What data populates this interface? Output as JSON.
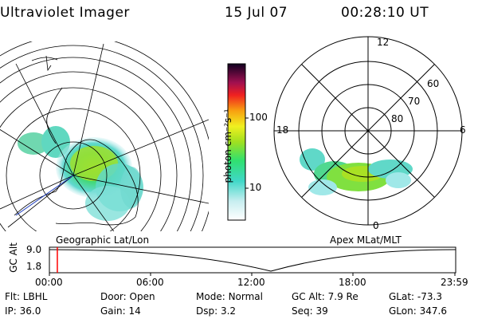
{
  "header": {
    "title": "Ultraviolet Imager",
    "date": "15 Jul 07",
    "time": "00:28:10 UT"
  },
  "colorbar": {
    "unit_label": "photon cm⁻²s⁻¹",
    "ticks": [
      "100",
      "10"
    ]
  },
  "left_panel": {
    "caption": "Geographic Lat/Lon"
  },
  "right_panel": {
    "caption": "Apex MLat/MLT",
    "mlt_labels": {
      "top": "12",
      "left": "18",
      "right": "6",
      "bottom": "0"
    },
    "lat_labels": [
      "60",
      "70",
      "80"
    ]
  },
  "timeline": {
    "axis_label": "GC Alt",
    "y_ticks": [
      "9.0",
      "1.8"
    ],
    "x_ticks": [
      "00:00",
      "06:00",
      "12:00",
      "18:00",
      "23:59"
    ],
    "marker_time_hours": 0.47
  },
  "info": {
    "row1": [
      {
        "label": "Flt:",
        "value": "LBHL"
      },
      {
        "label": "Door:",
        "value": "Open"
      },
      {
        "label": "Mode:",
        "value": "Normal"
      },
      {
        "label": "GC Alt:",
        "value": "7.9 Re"
      },
      {
        "label": "GLat:",
        "value": "-73.3"
      }
    ],
    "row2": [
      {
        "label": "IP:",
        "value": "36.0"
      },
      {
        "label": "Gain:",
        "value": "14"
      },
      {
        "label": "Dsp:",
        "value": "3.2"
      },
      {
        "label": "Seq:",
        "value": "39"
      },
      {
        "label": "GLon:",
        "value": "347.6"
      }
    ]
  },
  "colors": {
    "bg": "#ffffff",
    "line": "#000000",
    "marker": "#ff0000"
  }
}
